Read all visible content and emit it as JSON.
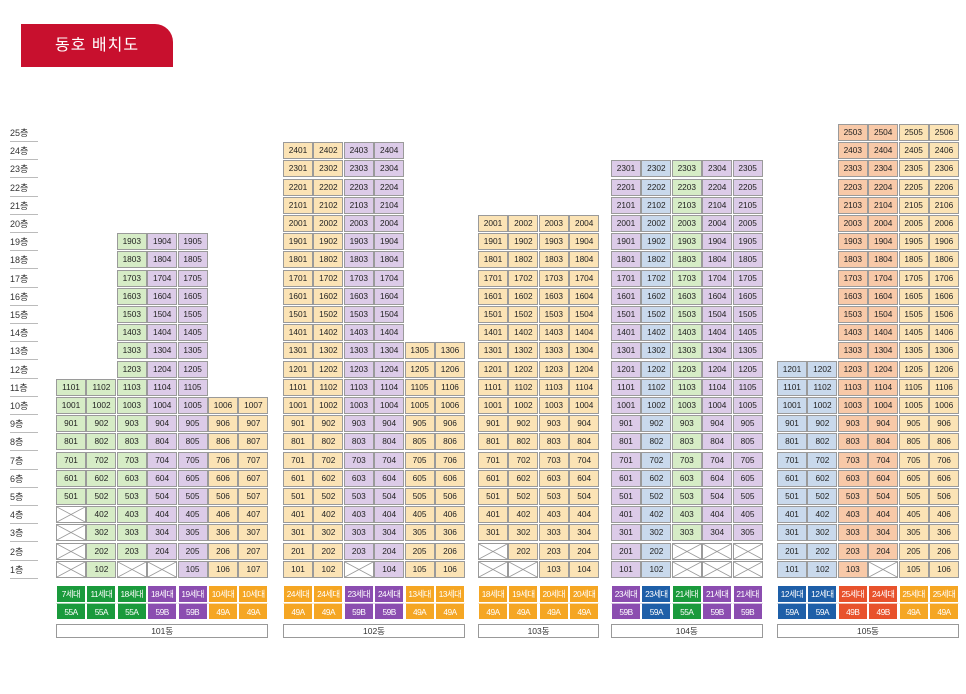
{
  "title": "동호 배치도",
  "floors": [
    "25층",
    "24층",
    "23층",
    "22층",
    "21층",
    "20층",
    "19층",
    "18층",
    "17층",
    "16층",
    "15층",
    "14층",
    "13층",
    "12층",
    "11층",
    "10층",
    "9층",
    "8층",
    "7층",
    "6층",
    "5층",
    "4층",
    "3층",
    "2층",
    "1층"
  ],
  "colors": {
    "55A": "#1a9a3c",
    "59A": "#1e5fa8",
    "59B": "#8b4db0",
    "49A": "#f5a623",
    "49B": "#e8522c",
    "fill_55A": "#d6ecc6",
    "fill_59A": "#c9d9ec",
    "fill_59B": "#dccbe8",
    "fill_49A": "#fbe3b5",
    "fill_49B": "#f8c9a8"
  },
  "buildings": [
    {
      "name": "101동",
      "lines": [
        {
          "line": "01",
          "households": "7세대",
          "type": "55A",
          "min": 5,
          "max": 11,
          "blank": [
            4,
            3,
            2,
            1
          ]
        },
        {
          "line": "02",
          "households": "11세대",
          "type": "55A",
          "min": 1,
          "max": 11,
          "blank": []
        },
        {
          "line": "03",
          "households": "18세대",
          "type": "55A",
          "min": 2,
          "max": 19,
          "blank": [
            1
          ]
        },
        {
          "line": "04",
          "households": "18세대",
          "type": "59B",
          "min": 2,
          "max": 19,
          "blank": [
            1
          ]
        },
        {
          "line": "05",
          "households": "19세대",
          "type": "59B",
          "min": 1,
          "max": 19,
          "blank": []
        },
        {
          "line": "06",
          "households": "10세대",
          "type": "49A",
          "min": 1,
          "max": 10,
          "blank": []
        },
        {
          "line": "07",
          "households": "10세대",
          "type": "49A",
          "min": 1,
          "max": 10,
          "blank": []
        }
      ]
    },
    {
      "name": "102동",
      "lines": [
        {
          "line": "01",
          "households": "24세대",
          "type": "49A",
          "min": 1,
          "max": 24,
          "blank": []
        },
        {
          "line": "02",
          "households": "24세대",
          "type": "49A",
          "min": 1,
          "max": 24,
          "blank": []
        },
        {
          "line": "03",
          "households": "23세대",
          "type": "59B",
          "min": 2,
          "max": 24,
          "blank": [
            1
          ]
        },
        {
          "line": "04",
          "households": "24세대",
          "type": "59B",
          "min": 1,
          "max": 24,
          "blank": []
        },
        {
          "line": "05",
          "households": "13세대",
          "type": "49A",
          "min": 1,
          "max": 13,
          "blank": []
        },
        {
          "line": "06",
          "households": "13세대",
          "type": "49A",
          "min": 1,
          "max": 13,
          "blank": []
        }
      ]
    },
    {
      "name": "103동",
      "lines": [
        {
          "line": "01",
          "households": "18세대",
          "type": "49A",
          "min": 3,
          "max": 20,
          "blank": [
            2,
            1
          ]
        },
        {
          "line": "02",
          "households": "19세대",
          "type": "49A",
          "min": 2,
          "max": 20,
          "blank": [
            1
          ]
        },
        {
          "line": "03",
          "households": "20세대",
          "type": "49A",
          "min": 1,
          "max": 20,
          "blank": []
        },
        {
          "line": "04",
          "households": "20세대",
          "type": "49A",
          "min": 1,
          "max": 20,
          "blank": []
        }
      ]
    },
    {
      "name": "104동",
      "lines": [
        {
          "line": "01",
          "households": "23세대",
          "type": "59B",
          "min": 1,
          "max": 23,
          "blank": []
        },
        {
          "line": "02",
          "households": "23세대",
          "type": "59A",
          "min": 1,
          "max": 23,
          "blank": []
        },
        {
          "line": "03",
          "households": "21세대",
          "type": "55A",
          "min": 3,
          "max": 23,
          "blank": [
            2,
            1
          ]
        },
        {
          "line": "04",
          "households": "21세대",
          "type": "59B",
          "min": 3,
          "max": 23,
          "blank": [
            2,
            1
          ]
        },
        {
          "line": "05",
          "households": "21세대",
          "type": "59B",
          "min": 3,
          "max": 23,
          "blank": [
            2,
            1
          ]
        }
      ]
    },
    {
      "name": "105동",
      "lines": [
        {
          "line": "01",
          "households": "12세대",
          "type": "59A",
          "min": 1,
          "max": 12,
          "blank": []
        },
        {
          "line": "02",
          "households": "12세대",
          "type": "59A",
          "min": 1,
          "max": 12,
          "blank": []
        },
        {
          "line": "03",
          "households": "25세대",
          "type": "49B",
          "min": 1,
          "max": 25,
          "blank": []
        },
        {
          "line": "04",
          "households": "24세대",
          "type": "49B",
          "min": 2,
          "max": 25,
          "blank": [
            1
          ]
        },
        {
          "line": "05",
          "households": "25세대",
          "type": "49A",
          "min": 1,
          "max": 25,
          "blank": []
        },
        {
          "line": "06",
          "households": "25세대",
          "type": "49A",
          "min": 1,
          "max": 25,
          "blank": []
        }
      ]
    }
  ]
}
